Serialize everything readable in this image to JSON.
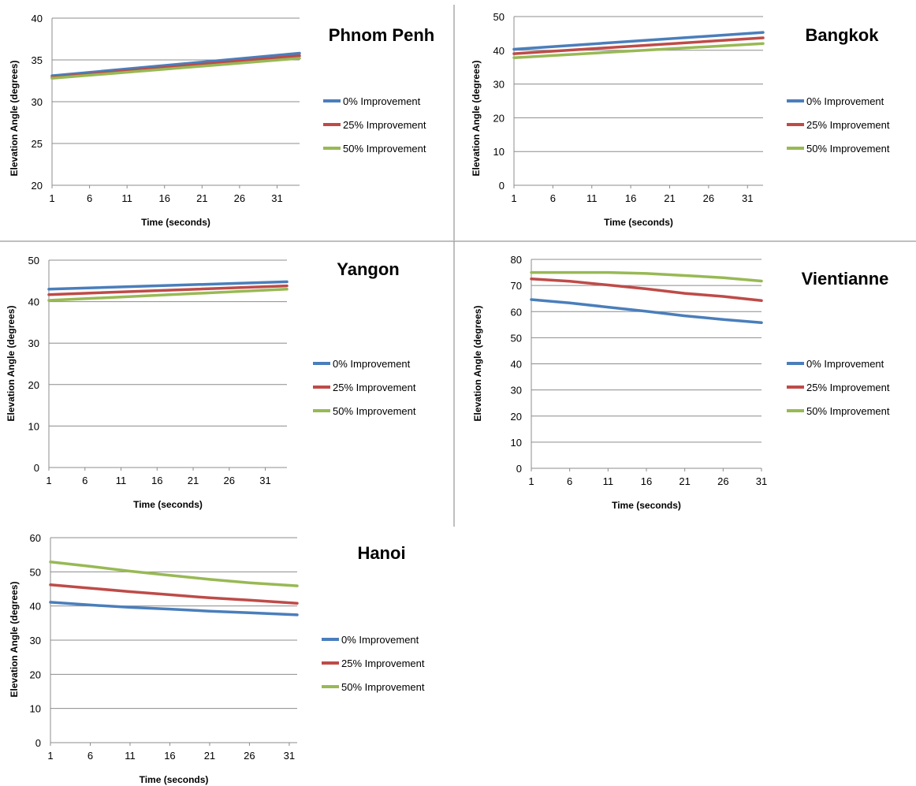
{
  "colors": {
    "s0": "#4a7ebb",
    "s1": "#be4b48",
    "s2": "#98b954"
  },
  "chart_data": [
    {
      "type": "line",
      "title": "Phnom Penh",
      "xlabel": "Time (seconds)",
      "ylabel": "Elevation Angle (degrees)",
      "ylim": [
        20,
        40
      ],
      "yticks": [
        20,
        25,
        30,
        35,
        40
      ],
      "xticks": [
        1,
        6,
        11,
        16,
        21,
        26,
        31
      ],
      "xrange": [
        1,
        34
      ],
      "grid": true,
      "legend_position": "right",
      "series": [
        {
          "name": "0% Improvement",
          "x": [
            1,
            34
          ],
          "values": [
            33.1,
            35.8
          ]
        },
        {
          "name": "25% Improvement",
          "x": [
            1,
            34
          ],
          "values": [
            32.9,
            35.5
          ]
        },
        {
          "name": "50% Improvement",
          "x": [
            1,
            34
          ],
          "values": [
            32.8,
            35.2
          ]
        }
      ]
    },
    {
      "type": "line",
      "title": "Bangkok",
      "xlabel": "Time (seconds)",
      "ylabel": "Elevation Angle (degrees)",
      "ylim": [
        0,
        50
      ],
      "yticks": [
        0,
        10,
        20,
        30,
        40,
        50
      ],
      "xticks": [
        1,
        6,
        11,
        16,
        21,
        26,
        31
      ],
      "xrange": [
        1,
        33
      ],
      "grid": true,
      "legend_position": "right",
      "series": [
        {
          "name": "0% Improvement",
          "x": [
            1,
            33
          ],
          "values": [
            40.3,
            45.3
          ]
        },
        {
          "name": "25% Improvement",
          "x": [
            1,
            33
          ],
          "values": [
            39.0,
            43.7
          ]
        },
        {
          "name": "50% Improvement",
          "x": [
            1,
            33
          ],
          "values": [
            37.8,
            42.0
          ]
        }
      ]
    },
    {
      "type": "line",
      "title": "Yangon",
      "xlabel": "Time (seconds)",
      "ylabel": "Elevation Angle (degrees)",
      "ylim": [
        0,
        50
      ],
      "yticks": [
        0,
        10,
        20,
        30,
        40,
        50
      ],
      "xticks": [
        1,
        6,
        11,
        16,
        21,
        26,
        31
      ],
      "xrange": [
        1,
        34
      ],
      "grid": true,
      "legend_position": "right",
      "series": [
        {
          "name": "0% Improvement",
          "x": [
            1,
            34
          ],
          "values": [
            43.0,
            44.8
          ]
        },
        {
          "name": "25% Improvement",
          "x": [
            1,
            34
          ],
          "values": [
            41.7,
            43.8
          ]
        },
        {
          "name": "50% Improvement",
          "x": [
            1,
            34
          ],
          "values": [
            40.3,
            43.0
          ]
        }
      ]
    },
    {
      "type": "line",
      "title": "Vientianne",
      "xlabel": "Time (seconds)",
      "ylabel": "Elevation Angle (degrees)",
      "ylim": [
        0,
        80
      ],
      "yticks": [
        0,
        10,
        20,
        30,
        40,
        50,
        60,
        70,
        80
      ],
      "xticks": [
        1,
        6,
        11,
        16,
        21,
        26,
        31
      ],
      "xrange": [
        1,
        31
      ],
      "grid": true,
      "legend_position": "right",
      "series": [
        {
          "name": "0% Improvement",
          "x": [
            1,
            6,
            11,
            16,
            21,
            26,
            31
          ],
          "values": [
            64.6,
            63.3,
            61.7,
            60.1,
            58.4,
            57.0,
            55.8
          ]
        },
        {
          "name": "25% Improvement",
          "x": [
            1,
            6,
            11,
            16,
            21,
            26,
            31
          ],
          "values": [
            72.5,
            71.6,
            70.2,
            68.7,
            67.0,
            65.8,
            64.2
          ]
        },
        {
          "name": "50% Improvement",
          "x": [
            1,
            6,
            11,
            16,
            21,
            26,
            31
          ],
          "values": [
            75.0,
            75.0,
            75.0,
            74.6,
            73.8,
            73.0,
            71.7
          ]
        }
      ]
    },
    {
      "type": "line",
      "title": "Hanoi",
      "xlabel": "Time (seconds)",
      "ylabel": "Elevation Angle (degrees)",
      "ylim": [
        0,
        60
      ],
      "yticks": [
        0,
        10,
        20,
        30,
        40,
        50,
        60
      ],
      "xticks": [
        1,
        6,
        11,
        16,
        21,
        26,
        31
      ],
      "xrange": [
        1,
        32
      ],
      "grid": true,
      "legend_position": "right",
      "series": [
        {
          "name": "0% Improvement",
          "x": [
            1,
            6,
            11,
            16,
            21,
            26,
            32
          ],
          "values": [
            41.1,
            40.3,
            39.6,
            39.1,
            38.5,
            38.0,
            37.4
          ]
        },
        {
          "name": "25% Improvement",
          "x": [
            1,
            6,
            11,
            16,
            21,
            26,
            32
          ],
          "values": [
            46.2,
            45.2,
            44.2,
            43.3,
            42.4,
            41.7,
            40.8
          ]
        },
        {
          "name": "50% Improvement",
          "x": [
            1,
            6,
            11,
            16,
            21,
            26,
            32
          ],
          "values": [
            52.9,
            51.6,
            50.2,
            49.0,
            47.8,
            46.8,
            45.9
          ]
        }
      ]
    }
  ]
}
